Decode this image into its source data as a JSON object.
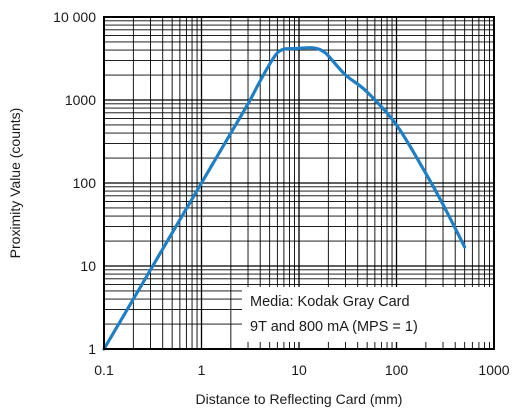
{
  "chart_data": {
    "type": "line",
    "xscale": "log",
    "yscale": "log",
    "xlim": [
      0.1,
      1000
    ],
    "ylim": [
      1,
      10000
    ],
    "xlabel": "Distance to Reflecting Card (mm)",
    "ylabel": "Proximity Value (counts)",
    "x_ticks": [
      {
        "value": 0.1,
        "label": "0.1"
      },
      {
        "value": 1,
        "label": "1"
      },
      {
        "value": 10,
        "label": "10"
      },
      {
        "value": 100,
        "label": "100"
      },
      {
        "value": 1000,
        "label": "1000"
      }
    ],
    "y_ticks": [
      {
        "value": 1,
        "label": "1"
      },
      {
        "value": 10,
        "label": "10"
      },
      {
        "value": 100,
        "label": "100"
      },
      {
        "value": 1000,
        "label": "1000"
      },
      {
        "value": 10000,
        "label": "10 000"
      }
    ],
    "grid": true,
    "annotation": {
      "lines": [
        "Media: Kodak Gray Card",
        "9T and 800 mA (MPS = 1)"
      ],
      "placement": "bottom-right"
    },
    "series": [
      {
        "color": "#1f7fc4",
        "x": [
          0.1,
          0.2,
          0.5,
          1,
          2,
          3,
          4,
          5,
          6,
          7,
          8,
          10,
          12,
          14,
          16,
          18,
          20,
          30,
          50,
          100,
          200,
          300,
          500
        ],
        "y": [
          1,
          4,
          25,
          100,
          400,
          900,
          1700,
          2700,
          3700,
          4100,
          4150,
          4200,
          4250,
          4250,
          4100,
          3800,
          3400,
          2000,
          1250,
          500,
          130,
          55,
          17
        ]
      }
    ]
  }
}
